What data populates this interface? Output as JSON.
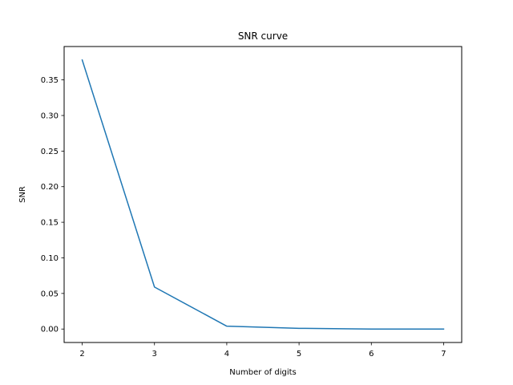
{
  "chart_data": {
    "type": "line",
    "title": "SNR curve",
    "xlabel": "Number of digits",
    "ylabel": "SNR",
    "x": [
      2,
      3,
      4,
      5,
      6,
      7
    ],
    "series": [
      {
        "values": [
          0.378,
          0.059,
          0.004,
          0.001,
          0.0,
          0.0
        ],
        "color": "#1f77b4"
      }
    ],
    "xlim": [
      1.75,
      7.25
    ],
    "ylim": [
      -0.0189,
      0.3969
    ],
    "xticks": [
      2,
      3,
      4,
      5,
      6,
      7
    ],
    "yticks": [
      0.0,
      0.05,
      0.1,
      0.15,
      0.2,
      0.25,
      0.3,
      0.35
    ],
    "xtick_labels": [
      "2",
      "3",
      "4",
      "5",
      "6",
      "7"
    ],
    "ytick_labels": [
      "0.00",
      "0.05",
      "0.10",
      "0.15",
      "0.20",
      "0.25",
      "0.30",
      "0.35"
    ],
    "grid": false,
    "legend": false
  }
}
